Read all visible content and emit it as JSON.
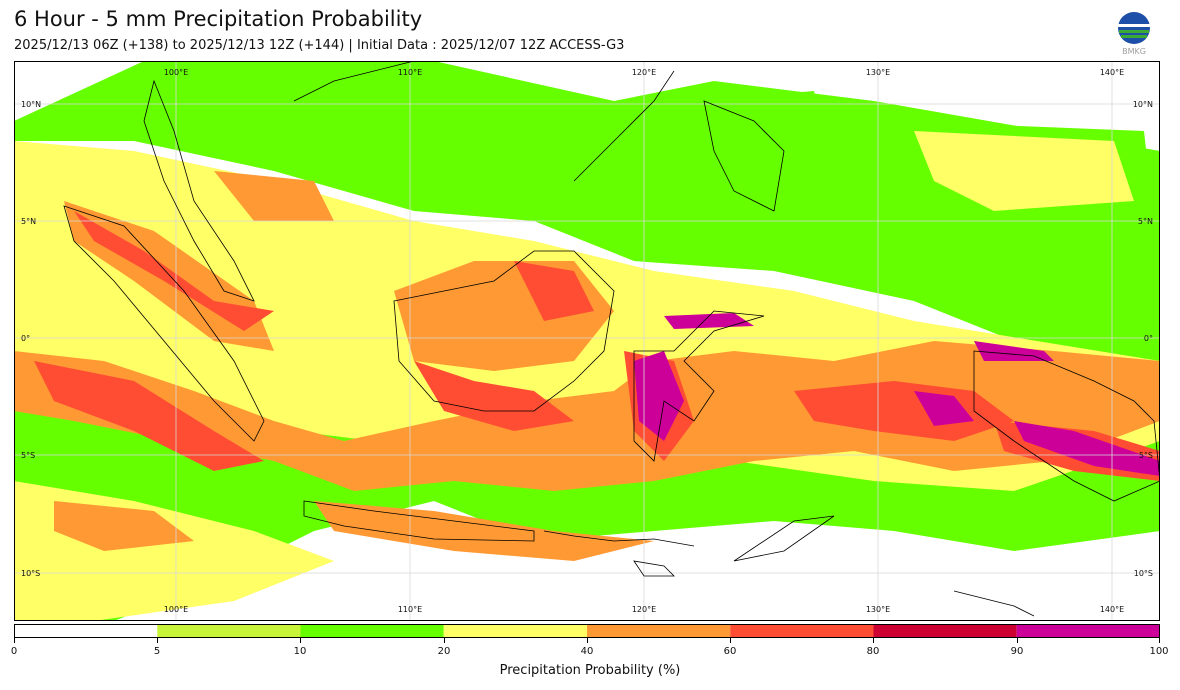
{
  "title": "6 Hour - 5 mm Precipitation Probability",
  "subtitle": "2025/12/13 06Z (+138) to 2025/12/13 12Z (+144) | Initial Data : 2025/12/07 12Z ACCESS-G3",
  "logo_text": "BMKG",
  "map": {
    "lon_labels": [
      "100°E",
      "110°E",
      "120°E",
      "130°E",
      "140°E"
    ],
    "lat_labels_left": [
      "10°N",
      "5°N",
      "0°",
      "5°S",
      "10°S"
    ],
    "lat_labels_right": [
      "10°N",
      "5°N",
      "0°",
      "5°S",
      "10°S"
    ]
  },
  "colorbar": {
    "label": "Precipitation Probability (%)",
    "ticks": [
      "0",
      "5",
      "10",
      "20",
      "40",
      "60",
      "80",
      "90",
      "100"
    ],
    "colors": [
      "#ffffff",
      "#c8f53a",
      "#66ff00",
      "#ffff66",
      "#ff9933",
      "#ff4d33",
      "#cc0033",
      "#cc0099"
    ]
  },
  "colors": {
    "green": "#66ff00",
    "lightgreen": "#c8f53a",
    "yellow": "#ffff66",
    "orange": "#ff9933",
    "red": "#ff4d33",
    "crimson": "#cc0033",
    "magenta": "#cc0099"
  }
}
